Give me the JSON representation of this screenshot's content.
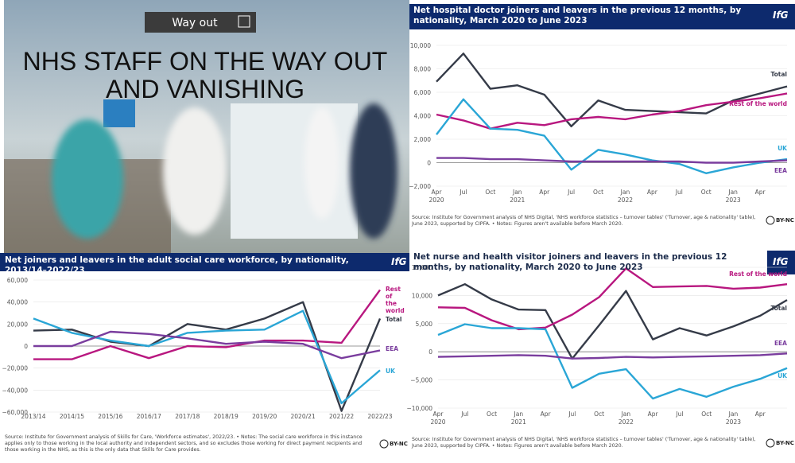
{
  "photo": {
    "headline": [
      "NHS STAFF ON THE WAY OUT",
      "AND VANISHING"
    ],
    "sign": "Way out"
  },
  "branding": {
    "logo": "IfG",
    "license": "BY-NC"
  },
  "chart_data": [
    {
      "type": "line",
      "title": "Net hospital doctor joiners and leavers in the previous 12 months, by nationality, March 2020 to June 2023",
      "source": "Source: Institute for Government analysis of NHS Digital, 'NHS workforce statistics – turnover tables' ('Turnover, age & nationality' table), June 2023, supported by CIPFA. • Notes: Figures aren't available before March 2020.",
      "categories": [
        "Apr 2020",
        "Jul",
        "Oct",
        "Jan 2021",
        "Apr",
        "Jul",
        "Oct",
        "Jan 2022",
        "Apr",
        "Jul",
        "Oct",
        "Jan 2023",
        "Apr",
        null
      ],
      "ylim": [
        -2000,
        10000
      ],
      "yticks": [
        {
          "value": -2000,
          "label": "−2,000"
        },
        0,
        {
          "value": 2000,
          "label": "2,000"
        },
        {
          "value": 4000,
          "label": "4,000"
        },
        {
          "value": 6000,
          "label": "6,000"
        },
        {
          "value": 8000,
          "label": "8,000"
        },
        {
          "value": 10000,
          "label": "10,000"
        }
      ],
      "grid": true,
      "series": [
        {
          "name": "Total",
          "color": "#353b48",
          "values": [
            6900,
            9300,
            6300,
            6600,
            5800,
            3100,
            5300,
            4500,
            4400,
            4300,
            4200,
            5300,
            5900,
            6500
          ]
        },
        {
          "name": "Rest of the world",
          "color": "#b8177f",
          "values": [
            4100,
            3600,
            2900,
            3400,
            3200,
            3700,
            3900,
            3700,
            4100,
            4400,
            4900,
            5200,
            5500,
            5900
          ]
        },
        {
          "name": "UK",
          "color": "#2aa6d6",
          "values": [
            2400,
            5400,
            2900,
            2800,
            2300,
            -600,
            1100,
            700,
            200,
            -100,
            -900,
            -400,
            0,
            300
          ]
        },
        {
          "name": "EEA",
          "color": "#7a3d9e",
          "values": [
            400,
            400,
            300,
            300,
            200,
            100,
            100,
            100,
            100,
            100,
            0,
            0,
            100,
            200
          ]
        }
      ]
    },
    {
      "type": "line",
      "title": "Net joiners and leavers in the adult social care workforce, by nationality, 2013/14–2022/23",
      "source": "Source: Institute for Government analysis of Skills for Care, 'Workforce estimates', 2022/23. • Notes: The social care workforce in this instance applies only to those working in the local authority and independent sectors, and so excludes those working for direct payment recipients and those working in the NHS, as this is the only data that Skills for Care provides.",
      "categories": [
        "2013/14",
        "2014/15",
        "2015/16",
        "2016/17",
        "2017/18",
        "2018/19",
        "2019/20",
        "2020/21",
        "2021/22",
        "2022/23"
      ],
      "ylim": [
        -60000,
        60000
      ],
      "yticks": [
        {
          "value": -60000,
          "label": "−60,000"
        },
        {
          "value": -40000,
          "label": "−40,000"
        },
        {
          "value": -20000,
          "label": "−20,000"
        },
        0,
        {
          "value": 20000,
          "label": "20,000"
        },
        {
          "value": 40000,
          "label": "40,000"
        },
        {
          "value": 60000,
          "label": "60,000"
        }
      ],
      "grid": true,
      "series": [
        {
          "name": "Total",
          "color": "#353b48",
          "values": [
            14000,
            15000,
            4000,
            0,
            20000,
            15000,
            25000,
            40000,
            -59000,
            25000
          ]
        },
        {
          "name": "Rest of the world",
          "color": "#b8177f",
          "values": [
            -12000,
            -12000,
            0,
            -11000,
            0,
            -1000,
            5000,
            5000,
            3000,
            51000
          ]
        },
        {
          "name": "UK",
          "color": "#2aa6d6",
          "values": [
            25000,
            12000,
            5000,
            0,
            12000,
            14000,
            15000,
            32000,
            -52000,
            -22000
          ]
        },
        {
          "name": "EEA",
          "color": "#7a3d9e",
          "values": [
            0,
            0,
            13000,
            11000,
            7000,
            2000,
            4000,
            2000,
            -11000,
            -4000
          ]
        }
      ]
    },
    {
      "type": "line",
      "title": "Net nurse and health visitor joiners and leavers in the previous 12 months, by nationality, March 2020 to June 2023",
      "source": "Source: Institute for Government analysis of NHS Digital, 'NHS workforce statistics – turnover tables' ('Turnover, age & nationality' table), June 2023, supported by CIPFA. • Notes: Figures aren't available before March 2020.",
      "categories": [
        "Apr 2020",
        "Jul",
        "Oct",
        "Jan 2021",
        "Apr",
        "Jul",
        "Oct",
        "Jan 2022",
        "Apr",
        "Jul",
        "Oct",
        "Jan 2023",
        "Apr",
        null
      ],
      "ylim": [
        -10000,
        15000
      ],
      "yticks": [
        {
          "value": -10000,
          "label": "−10,000"
        },
        {
          "value": -5000,
          "label": "−5,000"
        },
        0,
        {
          "value": 5000,
          "label": "5,000"
        },
        {
          "value": 10000,
          "label": "10,000"
        },
        {
          "value": 15000,
          "label": "15,000"
        }
      ],
      "grid": true,
      "series": [
        {
          "name": "Total",
          "color": "#353b48",
          "values": [
            10000,
            12000,
            9300,
            7500,
            7400,
            -1200,
            4700,
            10800,
            2200,
            4200,
            2900,
            4500,
            6400,
            9200
          ]
        },
        {
          "name": "Rest of the world",
          "color": "#b8177f",
          "values": [
            7900,
            7800,
            5600,
            4000,
            4300,
            6600,
            9700,
            14800,
            11500,
            11600,
            11700,
            11200,
            11400,
            12000
          ]
        },
        {
          "name": "UK",
          "color": "#2aa6d6",
          "values": [
            3000,
            4900,
            4200,
            4200,
            4000,
            -6400,
            -3900,
            -3100,
            -8300,
            -6600,
            -8000,
            -6200,
            -4800,
            -2900
          ]
        },
        {
          "name": "EEA",
          "color": "#7a3d9e",
          "values": [
            -900,
            -800,
            -700,
            -600,
            -700,
            -1200,
            -1100,
            -900,
            -1000,
            -900,
            -800,
            -700,
            -600,
            -300
          ]
        }
      ]
    }
  ]
}
